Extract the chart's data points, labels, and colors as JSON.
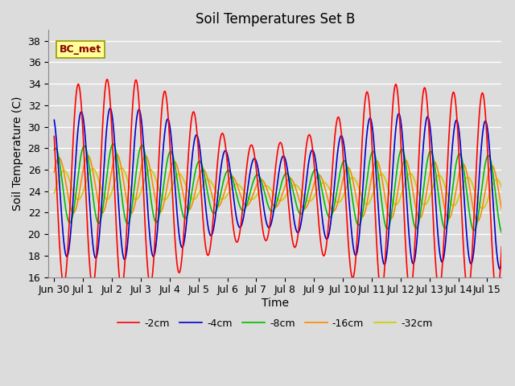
{
  "title": "Soil Temperatures Set B",
  "xlabel": "Time",
  "ylabel": "Soil Temperature (C)",
  "ylim": [
    16,
    39
  ],
  "series_labels": [
    "-2cm",
    "-4cm",
    "-8cm",
    "-16cm",
    "-32cm"
  ],
  "series_colors": [
    "#ff0000",
    "#0000cc",
    "#00bb00",
    "#ff8800",
    "#cccc00"
  ],
  "annotation_text": "BC_met",
  "bg_color": "#dcdcdc",
  "grid_color": "#ffffff",
  "xtick_labels": [
    "Jun 30",
    "Jul 1",
    "Jul 2",
    "Jul 3",
    "Jul 4",
    "Jul 5",
    "Jul 6",
    "Jul 7",
    "Jul 8",
    "Jul 9",
    "Jul 10",
    "Jul 11",
    "Jul 12",
    "Jul 13",
    "Jul 14",
    "Jul 15"
  ]
}
